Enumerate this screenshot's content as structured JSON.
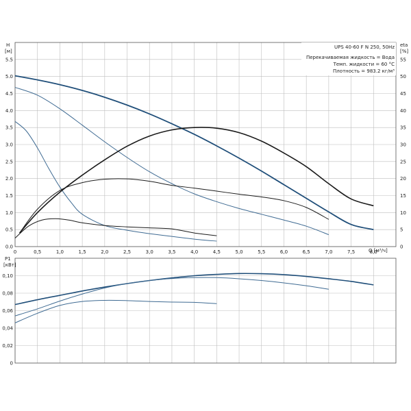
{
  "chart_data": [
    {
      "type": "line",
      "title": "UPS 40-60 F N 250, 50Hz",
      "info_lines": [
        "Перекачиваемая жидкость = Вода",
        "Темп. жидкости = 60 °C",
        "Плотность = 983.2 кг/м³"
      ],
      "xlabel": "Q [м³/ч]",
      "ylabel_left": "H",
      "ylabel_left_unit": "[м]",
      "ylabel_right": "eta",
      "ylabel_right_unit": "[%]",
      "xlim": [
        0,
        8.5
      ],
      "ylim": [
        0,
        6
      ],
      "y2lim": [
        0,
        60
      ],
      "x_ticks": [
        "0",
        "0,5",
        "1,0",
        "1,5",
        "2,0",
        "2,5",
        "3,0",
        "3,5",
        "4,0",
        "4,5",
        "5,0",
        "5,5",
        "6,0",
        "6,5",
        "7,0",
        "7,5",
        "8,0"
      ],
      "x_tick_values": [
        0,
        0.5,
        1.0,
        1.5,
        2.0,
        2.5,
        3.0,
        3.5,
        4.0,
        4.5,
        5.0,
        5.5,
        6.0,
        6.5,
        7.0,
        7.5,
        8.0
      ],
      "y_ticks": [
        "0.0",
        "0.5",
        "1.0",
        "1.5",
        "2.0",
        "2.5",
        "3.0",
        "3.5",
        "4.0",
        "4.5",
        "5.0",
        "5.5"
      ],
      "y_tick_values": [
        0,
        0.5,
        1.0,
        1.5,
        2.0,
        2.5,
        3.0,
        3.5,
        4.0,
        4.5,
        5.0,
        5.5
      ],
      "y2_ticks": [
        "0",
        "5",
        "10",
        "15",
        "20",
        "25",
        "30",
        "35",
        "40",
        "45",
        "50",
        "55"
      ],
      "y2_tick_values": [
        0,
        5,
        10,
        15,
        20,
        25,
        30,
        35,
        40,
        45,
        50,
        55
      ],
      "grid": true,
      "series": [
        {
          "axis": "left",
          "color": "#1f4e79",
          "width": 1.8,
          "x": [
            0,
            0.5,
            1.0,
            1.5,
            2.0,
            2.5,
            3.0,
            3.5,
            4.0,
            4.5,
            5.0,
            5.5,
            6.0,
            6.5,
            7.0,
            7.5,
            8.0
          ],
          "y": [
            5.02,
            4.9,
            4.76,
            4.59,
            4.39,
            4.16,
            3.9,
            3.61,
            3.3,
            2.96,
            2.6,
            2.22,
            1.82,
            1.42,
            1.02,
            0.65,
            0.5
          ]
        },
        {
          "axis": "left",
          "color": "#3e6a92",
          "width": 1.0,
          "x": [
            0,
            0.5,
            1.0,
            1.5,
            2.0,
            2.5,
            3.0,
            3.5,
            4.0,
            4.5,
            5.0,
            5.5,
            6.0,
            6.5,
            7.0
          ],
          "y": [
            4.68,
            4.45,
            4.05,
            3.57,
            3.08,
            2.62,
            2.2,
            1.85,
            1.55,
            1.32,
            1.12,
            0.95,
            0.78,
            0.6,
            0.35
          ]
        },
        {
          "axis": "left",
          "color": "#3e6a92",
          "width": 1.0,
          "x": [
            0,
            0.25,
            0.5,
            0.75,
            1.0,
            1.25,
            1.5,
            2.0,
            2.5,
            3.0,
            3.5,
            4.0,
            4.5
          ],
          "y": [
            3.68,
            3.4,
            2.9,
            2.3,
            1.75,
            1.3,
            0.95,
            0.62,
            0.48,
            0.38,
            0.3,
            0.22,
            0.16
          ]
        },
        {
          "axis": "right",
          "color": "#1a1a1a",
          "width": 1.6,
          "x": [
            0.1,
            0.5,
            1.0,
            1.5,
            2.0,
            2.5,
            3.0,
            3.5,
            4.0,
            4.5,
            5.0,
            5.5,
            6.0,
            6.5,
            7.0,
            7.5,
            8.0
          ],
          "y": [
            4,
            10,
            16,
            21,
            25.5,
            29.5,
            32.5,
            34.3,
            35,
            34.8,
            33.5,
            31,
            27.5,
            23.5,
            18.5,
            14,
            12
          ]
        },
        {
          "axis": "right",
          "color": "#1a1a1a",
          "width": 1.0,
          "x": [
            0.1,
            0.5,
            1.0,
            1.5,
            2.0,
            2.5,
            3.0,
            3.5,
            4.0,
            4.5,
            5.0,
            5.5,
            6.0,
            6.5,
            7.0
          ],
          "y": [
            4,
            11,
            16.5,
            18.8,
            19.8,
            19.9,
            19.2,
            18,
            17.2,
            16.3,
            15.4,
            14.6,
            13.5,
            11.5,
            8
          ]
        },
        {
          "axis": "right",
          "color": "#1a1a1a",
          "width": 1.0,
          "x": [
            0.0,
            0.3,
            0.6,
            0.9,
            1.2,
            1.5,
            2.0,
            2.5,
            3.0,
            3.5,
            4.0,
            4.5
          ],
          "y": [
            2.5,
            6,
            7.8,
            8.2,
            7.8,
            7,
            6.2,
            5.8,
            5.5,
            5.2,
            4,
            3.2
          ]
        }
      ]
    },
    {
      "type": "line",
      "ylabel": "P1",
      "ylabel_unit": "[кВт]",
      "xlim": [
        0,
        8.5
      ],
      "ylim": [
        0,
        0.12
      ],
      "y_ticks": [
        "0",
        "0,02",
        "0,04",
        "0,06",
        "0,08",
        "0,10"
      ],
      "y_tick_values": [
        0,
        0.02,
        0.04,
        0.06,
        0.08,
        0.1
      ],
      "grid": true,
      "series": [
        {
          "color": "#1f4e79",
          "width": 1.6,
          "x": [
            0,
            0.5,
            1.0,
            1.5,
            2.0,
            2.5,
            3.0,
            3.5,
            4.0,
            4.5,
            5.0,
            5.5,
            6.0,
            6.5,
            7.0,
            7.5,
            8.0
          ],
          "y": [
            0.067,
            0.0725,
            0.0775,
            0.0825,
            0.087,
            0.091,
            0.0945,
            0.0975,
            0.1,
            0.1015,
            0.1025,
            0.1023,
            0.1012,
            0.0992,
            0.0965,
            0.0935,
            0.0895
          ]
        },
        {
          "color": "#3e6a92",
          "width": 1.0,
          "x": [
            0,
            0.5,
            1.0,
            1.5,
            2.0,
            2.5,
            3.0,
            3.5,
            4.0,
            4.5,
            5.0,
            5.5,
            6.0,
            6.5,
            7.0
          ],
          "y": [
            0.054,
            0.062,
            0.071,
            0.079,
            0.086,
            0.091,
            0.0945,
            0.0968,
            0.0978,
            0.0978,
            0.0965,
            0.0945,
            0.0918,
            0.0885,
            0.0845
          ]
        },
        {
          "color": "#3e6a92",
          "width": 1.0,
          "x": [
            0,
            0.5,
            1.0,
            1.5,
            2.0,
            2.5,
            3.0,
            3.5,
            4.0,
            4.5
          ],
          "y": [
            0.046,
            0.057,
            0.066,
            0.0705,
            0.0718,
            0.0715,
            0.0705,
            0.0698,
            0.0695,
            0.068
          ]
        }
      ]
    }
  ]
}
